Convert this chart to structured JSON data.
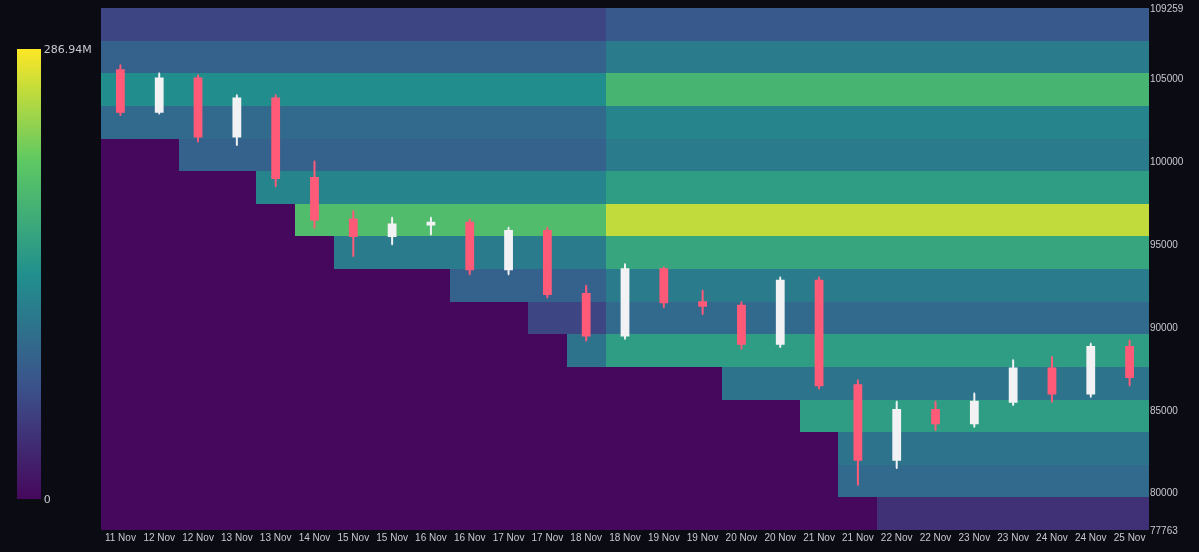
{
  "chart_data": {
    "type": "heatmap",
    "categories": [
      "11 Nov",
      "12 Nov",
      "12 Nov",
      "13 Nov",
      "13 Nov",
      "14 Nov",
      "15 Nov",
      "15 Nov",
      "16 Nov",
      "16 Nov",
      "17 Nov",
      "17 Nov",
      "18 Nov",
      "18 Nov",
      "19 Nov",
      "19 Nov",
      "20 Nov",
      "20 Nov",
      "21 Nov",
      "21 Nov",
      "22 Nov",
      "22 Nov",
      "23 Nov",
      "23 Nov",
      "24 Nov",
      "24 Nov",
      "25 Nov"
    ],
    "cells": [
      [
        60,
        60,
        60,
        60,
        60,
        60,
        60,
        60,
        60,
        60,
        60,
        60,
        60,
        80,
        80,
        80,
        80,
        80,
        80,
        80,
        80,
        80,
        80,
        80,
        80,
        80,
        80
      ],
      [
        90,
        90,
        90,
        90,
        90,
        90,
        90,
        90,
        90,
        90,
        90,
        90,
        90,
        120,
        120,
        120,
        120,
        120,
        120,
        120,
        120,
        120,
        120,
        120,
        120,
        120,
        120
      ],
      [
        140,
        140,
        140,
        140,
        140,
        140,
        140,
        140,
        140,
        140,
        140,
        140,
        140,
        190,
        190,
        190,
        190,
        190,
        190,
        190,
        190,
        190,
        190,
        190,
        190,
        190,
        190
      ],
      [
        100,
        100,
        100,
        100,
        100,
        100,
        100,
        100,
        100,
        100,
        100,
        100,
        100,
        130,
        130,
        130,
        130,
        130,
        130,
        130,
        130,
        130,
        130,
        130,
        130,
        130,
        130
      ],
      [
        0,
        0,
        90,
        90,
        90,
        90,
        90,
        90,
        90,
        90,
        90,
        90,
        90,
        120,
        120,
        120,
        120,
        120,
        120,
        120,
        120,
        120,
        120,
        120,
        120,
        120,
        120
      ],
      [
        0,
        0,
        0,
        0,
        130,
        130,
        130,
        130,
        130,
        130,
        130,
        130,
        130,
        160,
        160,
        160,
        160,
        160,
        160,
        160,
        160,
        160,
        160,
        160,
        160,
        160,
        160
      ],
      [
        0,
        0,
        0,
        0,
        0,
        200,
        200,
        200,
        200,
        200,
        200,
        200,
        200,
        260,
        260,
        260,
        260,
        260,
        260,
        260,
        260,
        260,
        260,
        260,
        260,
        260,
        260
      ],
      [
        0,
        0,
        0,
        0,
        0,
        0,
        120,
        120,
        120,
        120,
        120,
        120,
        120,
        170,
        170,
        170,
        170,
        170,
        170,
        170,
        170,
        170,
        170,
        170,
        170,
        170,
        170
      ],
      [
        0,
        0,
        0,
        0,
        0,
        0,
        0,
        0,
        0,
        90,
        90,
        90,
        90,
        120,
        120,
        120,
        120,
        120,
        120,
        120,
        120,
        120,
        120,
        120,
        120,
        120,
        120
      ],
      [
        0,
        0,
        0,
        0,
        0,
        0,
        0,
        0,
        0,
        0,
        0,
        60,
        60,
        100,
        100,
        100,
        100,
        100,
        100,
        100,
        100,
        100,
        100,
        100,
        100,
        100,
        100
      ],
      [
        0,
        0,
        0,
        0,
        0,
        0,
        0,
        0,
        0,
        0,
        0,
        0,
        110,
        160,
        160,
        160,
        160,
        160,
        160,
        160,
        160,
        160,
        160,
        160,
        160,
        160,
        160
      ],
      [
        0,
        0,
        0,
        0,
        0,
        0,
        0,
        0,
        0,
        0,
        0,
        0,
        0,
        0,
        0,
        0,
        110,
        110,
        110,
        110,
        110,
        110,
        110,
        110,
        110,
        110,
        110
      ],
      [
        0,
        0,
        0,
        0,
        0,
        0,
        0,
        0,
        0,
        0,
        0,
        0,
        0,
        0,
        0,
        0,
        0,
        0,
        160,
        160,
        160,
        160,
        160,
        160,
        160,
        160,
        160
      ],
      [
        0,
        0,
        0,
        0,
        0,
        0,
        0,
        0,
        0,
        0,
        0,
        0,
        0,
        0,
        0,
        0,
        0,
        0,
        0,
        110,
        110,
        110,
        110,
        110,
        110,
        110,
        110
      ],
      [
        0,
        0,
        0,
        0,
        0,
        0,
        0,
        0,
        0,
        0,
        0,
        0,
        0,
        0,
        0,
        0,
        0,
        0,
        0,
        100,
        100,
        100,
        100,
        100,
        100,
        100,
        100
      ],
      [
        0,
        0,
        0,
        0,
        0,
        0,
        0,
        0,
        0,
        0,
        0,
        0,
        0,
        0,
        0,
        0,
        0,
        0,
        0,
        0,
        40,
        40,
        40,
        40,
        40,
        40,
        40
      ]
    ],
    "clim": [
      0,
      286.94
    ],
    "cticks": [
      0,
      {
        "value": 286.94,
        "label": "286.94M"
      }
    ],
    "ylim": [
      77763,
      109259
    ],
    "yticks": [
      77763,
      80000,
      85000,
      90000,
      95000,
      100000,
      105000,
      109259
    ],
    "series": [
      {
        "type": "candlestick",
        "colors": [
          "#ff5a78",
          "#f2f2f5",
          "#ff5a78",
          "#f2f2f5",
          "#ff5a78",
          "#ff5a78",
          "#ff5a78",
          "#f2f2f5",
          "#f2f2f5",
          "#ff5a78",
          "#f2f2f5",
          "#ff5a78",
          "#ff5a78",
          "#f2f2f5",
          "#ff5a78",
          "#ff5a78",
          "#ff5a78",
          "#f2f2f5",
          "#ff5a78",
          "#ff5a78",
          "#f2f2f5",
          "#ff5a78",
          "#f2f2f5",
          "#f2f2f5",
          "#ff5a78",
          "#f2f2f5",
          "#ff5a78"
        ],
        "ohlc": [
          [
            105500,
            105800,
            102800,
            103000
          ],
          [
            103000,
            105300,
            102900,
            105000
          ],
          [
            105000,
            105200,
            101200,
            101500
          ],
          [
            101500,
            104000,
            101000,
            103800
          ],
          [
            103800,
            104000,
            98500,
            99000
          ],
          [
            99000,
            100000,
            96000,
            96500
          ],
          [
            96500,
            97000,
            94300,
            95500
          ],
          [
            95500,
            96600,
            95000,
            96200
          ],
          [
            96200,
            96600,
            95600,
            96300
          ],
          [
            96300,
            96500,
            93200,
            93500
          ],
          [
            93500,
            96000,
            93200,
            95800
          ],
          [
            95800,
            96000,
            91800,
            92000
          ],
          [
            92000,
            92500,
            89200,
            89500
          ],
          [
            89500,
            93800,
            89300,
            93500
          ],
          [
            93500,
            93600,
            91200,
            91500
          ],
          [
            91500,
            92200,
            90800,
            91300
          ],
          [
            91300,
            91500,
            88700,
            89000
          ],
          [
            89000,
            93000,
            88800,
            92800
          ],
          [
            92800,
            93000,
            86300,
            86500
          ],
          [
            86500,
            86800,
            80500,
            82000
          ],
          [
            82000,
            85500,
            81500,
            85000
          ],
          [
            85000,
            85500,
            83800,
            84200
          ],
          [
            84200,
            86000,
            84000,
            85500
          ],
          [
            85500,
            88000,
            85300,
            87500
          ],
          [
            87500,
            88200,
            85500,
            86000
          ],
          [
            86000,
            89000,
            85800,
            88800
          ],
          [
            88800,
            89200,
            86500,
            87000
          ]
        ]
      }
    ]
  }
}
